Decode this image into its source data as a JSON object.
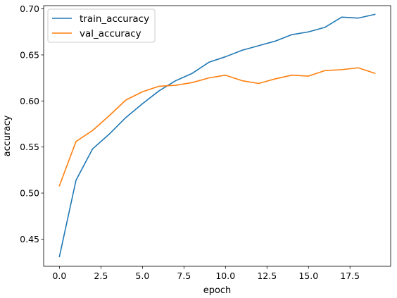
{
  "chart_data": {
    "type": "line",
    "title": "",
    "xlabel": "epoch",
    "ylabel": "accuracy",
    "x": [
      0,
      1,
      2,
      3,
      4,
      5,
      6,
      7,
      8,
      9,
      10,
      11,
      12,
      13,
      14,
      15,
      16,
      17,
      18,
      19
    ],
    "xlim": [
      -0.95,
      19.95
    ],
    "ylim": [
      0.4205,
      0.7035
    ],
    "xticks": [
      0.0,
      2.5,
      5.0,
      7.5,
      10.0,
      12.5,
      15.0,
      17.5
    ],
    "xtick_labels": [
      "0.0",
      "2.5",
      "5.0",
      "7.5",
      "10.0",
      "12.5",
      "15.0",
      "17.5"
    ],
    "yticks": [
      0.45,
      0.5,
      0.55,
      0.6,
      0.65,
      0.7
    ],
    "ytick_labels": [
      "0.45",
      "0.50",
      "0.55",
      "0.60",
      "0.65",
      "0.70"
    ],
    "grid": false,
    "legend": "top-left",
    "series": [
      {
        "name": "train_accuracy",
        "color": "#1f77b4",
        "values": [
          0.431,
          0.514,
          0.548,
          0.564,
          0.582,
          0.597,
          0.611,
          0.622,
          0.63,
          0.642,
          0.648,
          0.655,
          0.66,
          0.665,
          0.672,
          0.675,
          0.68,
          0.691,
          0.69,
          0.694
        ]
      },
      {
        "name": "val_accuracy",
        "color": "#ff7f0e",
        "values": [
          0.508,
          0.556,
          0.568,
          0.584,
          0.601,
          0.61,
          0.616,
          0.617,
          0.62,
          0.625,
          0.628,
          0.622,
          0.619,
          0.624,
          0.628,
          0.627,
          0.633,
          0.634,
          0.636,
          0.63
        ]
      }
    ]
  }
}
